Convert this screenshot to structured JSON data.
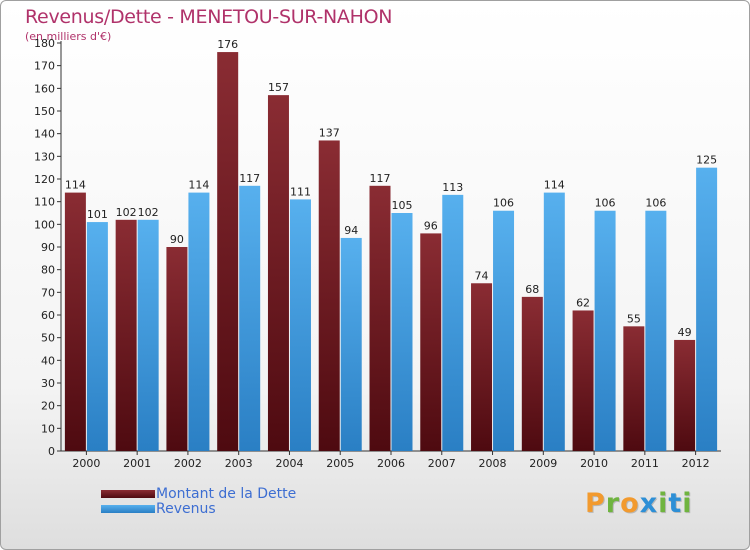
{
  "colors": {
    "debt": "#7a1e24",
    "revenue": "#3b9ae0",
    "title": "#b0326a",
    "legend_text": "#3d6ed2"
  },
  "legend": {
    "debt_label": "Montant de la Dette",
    "revenue_label": "Revenus"
  },
  "brand": {
    "letters": [
      "P",
      "r",
      "o",
      "x",
      "i",
      "t",
      "i"
    ],
    "colors": [
      "#f29a2e",
      "#6fb43f",
      "#f29a2e",
      "#2d8fd6",
      "#6fb43f",
      "#2d8fd6",
      "#6fb43f"
    ]
  },
  "chart_data": {
    "type": "bar",
    "title": "Revenus/Dette - MENETOU-SUR-NAHON",
    "subtitle": "(en milliers d'€)",
    "xlabel": "",
    "ylabel": "",
    "ylim": [
      0,
      180
    ],
    "ytick_step": 10,
    "grid": false,
    "categories": [
      "2000",
      "2001",
      "2002",
      "2003",
      "2004",
      "2005",
      "2006",
      "2007",
      "2008",
      "2009",
      "2010",
      "2011",
      "2012"
    ],
    "series": [
      {
        "name": "Montant de la Dette",
        "values": [
          114,
          102,
          90,
          176,
          157,
          137,
          117,
          96,
          74,
          68,
          62,
          55,
          49
        ]
      },
      {
        "name": "Revenus",
        "values": [
          101,
          102,
          114,
          117,
          111,
          94,
          105,
          113,
          106,
          114,
          106,
          106,
          125
        ]
      }
    ]
  }
}
